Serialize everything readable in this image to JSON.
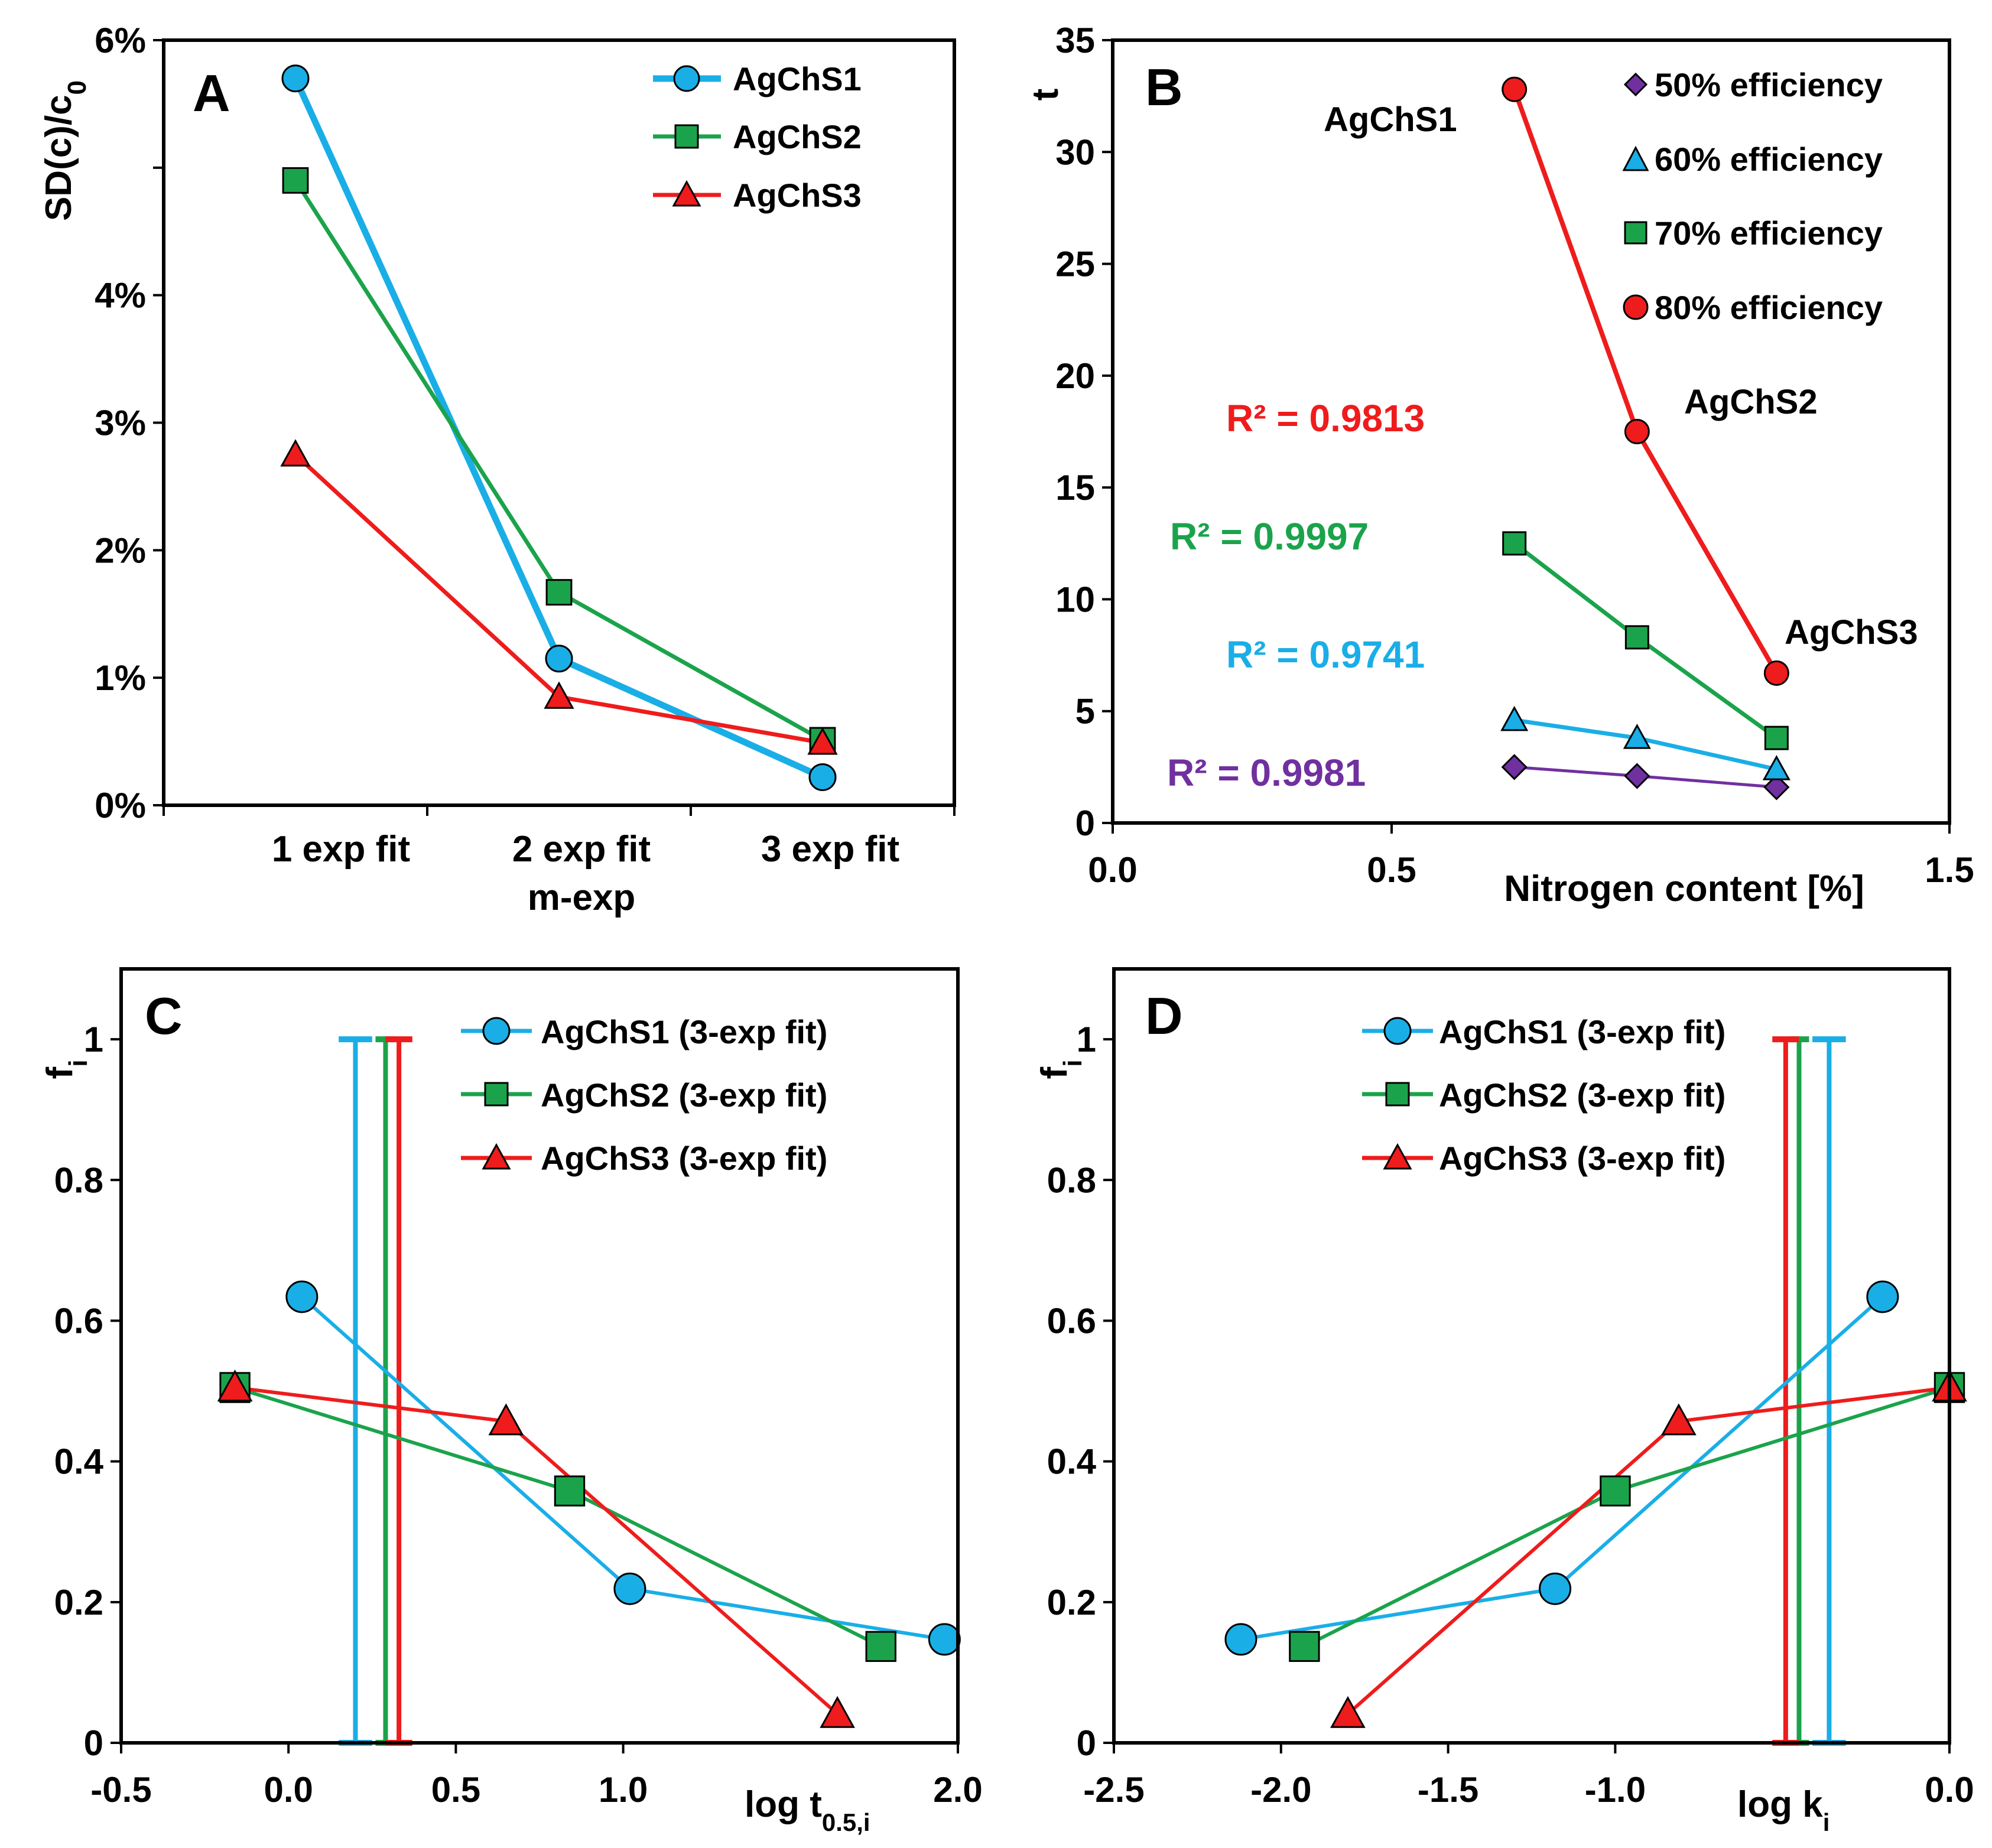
{
  "chart_data": [
    {
      "panel": "A",
      "type": "line",
      "ylabel": "SD(c)/c0",
      "ylim": [
        0,
        6
      ],
      "yticks": [
        0,
        1,
        2,
        3,
        4,
        6
      ],
      "ytick_labels": [
        "0%",
        "1%",
        "2%",
        "3%",
        "4%",
        "6%"
      ],
      "categories": [
        "1 exp fit",
        "2 exp fit\nm-exp",
        "3 exp fit"
      ],
      "x": [
        1,
        2,
        3
      ],
      "series": [
        {
          "name": "AgChS1",
          "marker": "circle",
          "color": "#1AAEE7",
          "x": [
            1,
            2,
            3
          ],
          "values": [
            5.7,
            1.15,
            0.22
          ]
        },
        {
          "name": "AgChS2",
          "marker": "square",
          "color": "#1BA34B",
          "x": [
            1,
            2,
            3
          ],
          "values": [
            4.9,
            1.67,
            0.51
          ]
        },
        {
          "name": "AgChS3",
          "marker": "triangle",
          "color": "#EE1C1C",
          "x": [
            1,
            2,
            3
          ],
          "values": [
            2.75,
            0.85,
            0.49
          ]
        }
      ],
      "legend_position": "top-right"
    },
    {
      "panel": "B",
      "type": "line",
      "xlabel": "Nitrogen content [%]",
      "ylabel": "t",
      "xlim": [
        0,
        1.5
      ],
      "ylim": [
        0,
        35
      ],
      "xticks": [
        0,
        0.5,
        1.5
      ],
      "xtick_labels": [
        "0.0",
        "0.5",
        "1.5"
      ],
      "yticks": [
        0,
        5,
        10,
        15,
        20,
        25,
        30,
        35
      ],
      "ytick_labels": [
        "0",
        "5",
        "10",
        "15",
        "20",
        "25",
        "30",
        "35"
      ],
      "series": [
        {
          "name": "50% efficiency",
          "marker": "diamond",
          "color": "#7030A0",
          "x": [
            0.72,
            0.94,
            1.19
          ],
          "values": [
            2.5,
            2.1,
            1.6
          ]
        },
        {
          "name": "60% efficiency",
          "marker": "triangle",
          "color": "#1AAEE7",
          "x": [
            0.72,
            0.94,
            1.19
          ],
          "values": [
            4.6,
            3.8,
            2.4
          ]
        },
        {
          "name": "70% efficiency",
          "marker": "square",
          "color": "#1BA34B",
          "x": [
            0.72,
            0.94,
            1.19
          ],
          "values": [
            12.5,
            8.3,
            3.8
          ]
        },
        {
          "name": "80% efficiency",
          "marker": "circle",
          "color": "#EE1C1C",
          "x": [
            0.72,
            0.94,
            1.19
          ],
          "values": [
            32.8,
            17.5,
            6.7
          ]
        }
      ],
      "annotations": [
        {
          "text": "AgChS1",
          "x": 0.72,
          "y": 32.8
        },
        {
          "text": "AgChS2",
          "x": 0.94,
          "y": 17.5
        },
        {
          "text": "AgChS3",
          "x": 1.19,
          "y": 6.7
        },
        {
          "text": "R² = 0.9813",
          "color": "#EE1C1C"
        },
        {
          "text": "R² = 0.9997",
          "color": "#1BA34B"
        },
        {
          "text": "R² = 0.9741",
          "color": "#1AAEE7"
        },
        {
          "text": "R² = 0.9981",
          "color": "#7030A0"
        }
      ],
      "legend_position": "top-right"
    },
    {
      "panel": "C",
      "type": "line",
      "xlabel": "log t0.5,i",
      "ylabel": "fi",
      "xlim": [
        -0.5,
        2.0
      ],
      "ylim": [
        0,
        1.1
      ],
      "xticks": [
        -0.5,
        0,
        0.5,
        1.0,
        2.0
      ],
      "xtick_labels": [
        "-0.5",
        "0.0",
        "0.5",
        "1.0",
        "2.0"
      ],
      "yticks": [
        0,
        0.2,
        0.4,
        0.6,
        0.8,
        1
      ],
      "ytick_labels": [
        "0",
        "0.2",
        "0.4",
        "0.6",
        "0.8",
        "1"
      ],
      "series": [
        {
          "name": "AgChS1 (3-exp fit)",
          "marker": "circle",
          "color": "#1AAEE7",
          "x": [
            0.04,
            1.02,
            1.96
          ],
          "values": [
            0.634,
            0.219,
            0.147
          ]
        },
        {
          "name": "AgChS2 (3-exp fit)",
          "marker": "square",
          "color": "#1BA34B",
          "x": [
            -0.16,
            0.84,
            1.77
          ],
          "values": [
            0.505,
            0.358,
            0.137
          ]
        },
        {
          "name": "AgChS3 (3-exp fit)",
          "marker": "triangle",
          "color": "#EE1C1C",
          "x": [
            -0.16,
            0.65,
            1.64
          ],
          "values": [
            0.505,
            0.457,
            0.041
          ]
        }
      ],
      "reference_lines": [
        {
          "series": "AgChS1",
          "color": "#1AAEE7",
          "x": 0.2,
          "cap_half_width": 0.05
        },
        {
          "series": "AgChS2",
          "color": "#1BA34B",
          "x": 0.29,
          "cap_half_width": 0.03
        },
        {
          "series": "AgChS3",
          "color": "#EE1C1C",
          "x": 0.33,
          "cap_half_width": 0.04
        }
      ],
      "legend_position": "top-right"
    },
    {
      "panel": "D",
      "type": "line",
      "xlabel": "log ki",
      "ylabel": "fi",
      "xlim": [
        -2.5,
        0.0
      ],
      "ylim": [
        0,
        1.1
      ],
      "xticks": [
        -2.5,
        -2.0,
        -1.5,
        -1.0,
        0.0
      ],
      "xtick_labels": [
        "-2.5",
        "-2.0",
        "-1.5",
        "-1.0",
        "0.0"
      ],
      "yticks": [
        0,
        0.2,
        0.4,
        0.6,
        0.8,
        1
      ],
      "ytick_labels": [
        "0",
        "0.2",
        "0.4",
        "0.6",
        "0.8",
        "1"
      ],
      "series": [
        {
          "name": "AgChS1 (3-exp fit)",
          "marker": "circle",
          "color": "#1AAEE7",
          "x": [
            -0.2,
            -1.18,
            -2.12
          ],
          "values": [
            0.634,
            0.219,
            0.147
          ]
        },
        {
          "name": "AgChS2 (3-exp fit)",
          "marker": "square",
          "color": "#1BA34B",
          "x": [
            0.0,
            -1.0,
            -1.93
          ],
          "values": [
            0.505,
            0.358,
            0.137
          ]
        },
        {
          "name": "AgChS3 (3-exp fit)",
          "marker": "triangle",
          "color": "#EE1C1C",
          "x": [
            0.0,
            -0.81,
            -1.8
          ],
          "values": [
            0.505,
            0.457,
            0.041
          ]
        }
      ],
      "reference_lines": [
        {
          "series": "AgChS1",
          "color": "#1AAEE7",
          "x": -0.36,
          "cap_half_width": 0.05
        },
        {
          "series": "AgChS2",
          "color": "#1BA34B",
          "x": -0.45,
          "cap_half_width": 0.03
        },
        {
          "series": "AgChS3",
          "color": "#EE1C1C",
          "x": -0.49,
          "cap_half_width": 0.04
        }
      ],
      "legend_position": "top-center"
    }
  ]
}
